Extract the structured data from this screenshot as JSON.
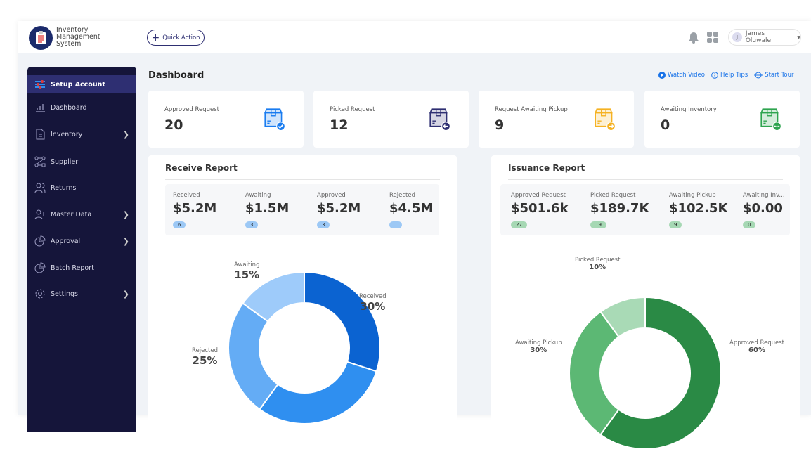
{
  "app": {
    "name": "Inventory Management System",
    "quick_action": "Quick Action",
    "user": {
      "initial": "J",
      "name": "James Oluwale"
    }
  },
  "sidebar": {
    "items": [
      {
        "label": "Setup Account",
        "icon": "sliders-icon",
        "active": true,
        "chevron": false
      },
      {
        "label": "Dashboard",
        "icon": "bar-chart-icon",
        "chevron": false
      },
      {
        "label": "Inventory",
        "icon": "document-icon",
        "chevron": true
      },
      {
        "label": "Supplier",
        "icon": "flow-icon",
        "chevron": false
      },
      {
        "label": "Returns",
        "icon": "users-icon",
        "chevron": false
      },
      {
        "label": "Master Data",
        "icon": "user-plus-icon",
        "chevron": true
      },
      {
        "label": "Approval",
        "icon": "pie-icon",
        "chevron": true
      },
      {
        "label": "Batch Report",
        "icon": "pie-icon",
        "chevron": false
      },
      {
        "label": "Settings",
        "icon": "gear-icon",
        "chevron": true
      }
    ]
  },
  "page": {
    "title": "Dashboard",
    "links": [
      "Watch Video",
      "Help Tips",
      "Start Tour"
    ]
  },
  "cards": [
    {
      "label": "Approved Request",
      "value": "20",
      "color": "#1a7cf0",
      "badge": "check"
    },
    {
      "label": "Picked Request",
      "value": "12",
      "color": "#2e2f72",
      "badge": "arrow-left"
    },
    {
      "label": "Request Awaiting Pickup",
      "value": "9",
      "color": "#f5b223",
      "badge": "arrow-right"
    },
    {
      "label": "Awaiting Inventory",
      "value": "0",
      "color": "#2ea44f",
      "badge": "more"
    }
  ],
  "receive": {
    "title": "Receive Report",
    "summary": [
      {
        "label": "Received",
        "value": "$5.2M",
        "count": "6"
      },
      {
        "label": "Awaiting",
        "value": "$1.5M",
        "count": "3"
      },
      {
        "label": "Approved",
        "value": "$5.2M",
        "count": "3"
      },
      {
        "label": "Rejected",
        "value": "$4.5M",
        "count": "1"
      }
    ]
  },
  "issuance": {
    "title": "Issuance Report",
    "summary": [
      {
        "label": "Approved Request",
        "value": "$501.6k",
        "count": "27"
      },
      {
        "label": "Picked Request",
        "value": "$189.7K",
        "count": "19"
      },
      {
        "label": "Awaiting Pickup",
        "value": "$102.5K",
        "count": "9"
      },
      {
        "label": "Awaiting Inv...",
        "value": "$0.00",
        "count": "0"
      }
    ]
  },
  "chart_data": [
    {
      "type": "pie",
      "donut": true,
      "slices": [
        {
          "name": "Received",
          "value": 30,
          "label": "30%",
          "color": "#0b63d1"
        },
        {
          "name": "",
          "value": 30,
          "color": "#2f8ff0"
        },
        {
          "name": "Rejected",
          "value": 25,
          "label": "25%",
          "color": "#64acf5"
        },
        {
          "name": "Awaiting",
          "value": 15,
          "label": "15%",
          "color": "#9ecbfa"
        }
      ]
    },
    {
      "type": "pie",
      "donut": true,
      "slices": [
        {
          "name": "Approved Request",
          "value": 60,
          "label": "60%",
          "color": "#2a8a45"
        },
        {
          "name": "Awaiting Pickup",
          "value": 30,
          "label": "30%",
          "color": "#5cb874"
        },
        {
          "name": "Picked Request",
          "value": 10,
          "label": "10%",
          "color": "#a9dab6"
        }
      ]
    }
  ]
}
